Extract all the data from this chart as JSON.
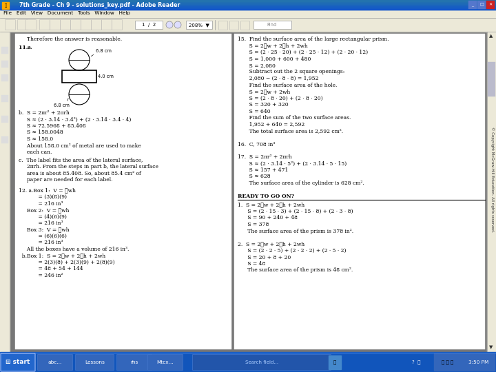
{
  "title_bar": "7th Grade - Ch 9 - solutions_key.pdf - Adobe Reader",
  "menu_bar": "File  Edit  View  Document  Tools  Window  Help",
  "title_bar_color": "#1155bb",
  "title_bar_text_color": "#ffffff",
  "window_bg": "#c0c0c0",
  "page_bg": "#808080",
  "taskbar_color": "#1155bb",
  "copyright_text": "© Copyright McGraw-Hill Education. All rights reserved.",
  "diagram_top_circle_label": "6.8 cm",
  "diagram_rect_label": "4.0 cm",
  "diagram_bot_circle_label": "6.8 cm"
}
